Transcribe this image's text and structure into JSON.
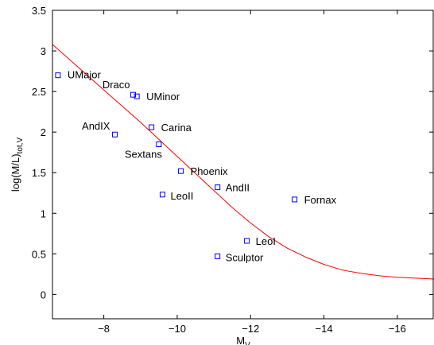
{
  "chart_data": {
    "type": "scatter",
    "title": "",
    "xlabel": "M",
    "xlabel_sub": "V",
    "ylabel": "log(M/L)",
    "ylabel_sub": "tot,V",
    "xlim": [
      -6.6,
      -17.0
    ],
    "ylim": [
      -0.3,
      3.5
    ],
    "x_ticks": [
      -8,
      -10,
      -12,
      -14,
      -16
    ],
    "x_tick_labels": [
      "−8",
      "−10",
      "−12",
      "−14",
      "−16"
    ],
    "y_ticks": [
      0,
      0.5,
      1,
      1.5,
      2,
      2.5,
      3,
      3.5
    ],
    "y_tick_labels": [
      "0",
      "0.5",
      "1",
      "1.5",
      "2",
      "2.5",
      "3",
      "3.5"
    ],
    "grid": false,
    "points": [
      {
        "name": "UMajor",
        "x": -6.75,
        "y": 2.7
      },
      {
        "name": "Draco",
        "x": -8.8,
        "y": 2.46
      },
      {
        "name": "UMinor",
        "x": -8.9,
        "y": 2.44
      },
      {
        "name": "AndIX",
        "x": -8.3,
        "y": 1.97
      },
      {
        "name": "Sextans",
        "x": -9.5,
        "y": 1.85
      },
      {
        "name": "Carina",
        "x": -9.3,
        "y": 2.06
      },
      {
        "name": "Phoenix",
        "x": -10.1,
        "y": 1.52
      },
      {
        "name": "LeoII",
        "x": -9.6,
        "y": 1.23
      },
      {
        "name": "AndII",
        "x": -11.1,
        "y": 1.32
      },
      {
        "name": "Fornax",
        "x": -13.2,
        "y": 1.17
      },
      {
        "name": "LeoI",
        "x": -11.9,
        "y": 0.66
      },
      {
        "name": "Sculptor",
        "x": -11.1,
        "y": 0.47
      }
    ],
    "curve": {
      "x": [
        -6.6,
        -7.0,
        -7.5,
        -8.0,
        -8.5,
        -9.0,
        -9.5,
        -10.0,
        -10.5,
        -11.0,
        -11.5,
        -12.0,
        -12.5,
        -13.0,
        -13.5,
        -14.0,
        -14.5,
        -15.0,
        -15.5,
        -16.0,
        -16.5,
        -17.0
      ],
      "y": [
        3.08,
        2.92,
        2.72,
        2.52,
        2.32,
        2.12,
        1.91,
        1.7,
        1.49,
        1.28,
        1.07,
        0.88,
        0.71,
        0.57,
        0.46,
        0.37,
        0.3,
        0.26,
        0.23,
        0.21,
        0.2,
        0.19
      ]
    }
  }
}
